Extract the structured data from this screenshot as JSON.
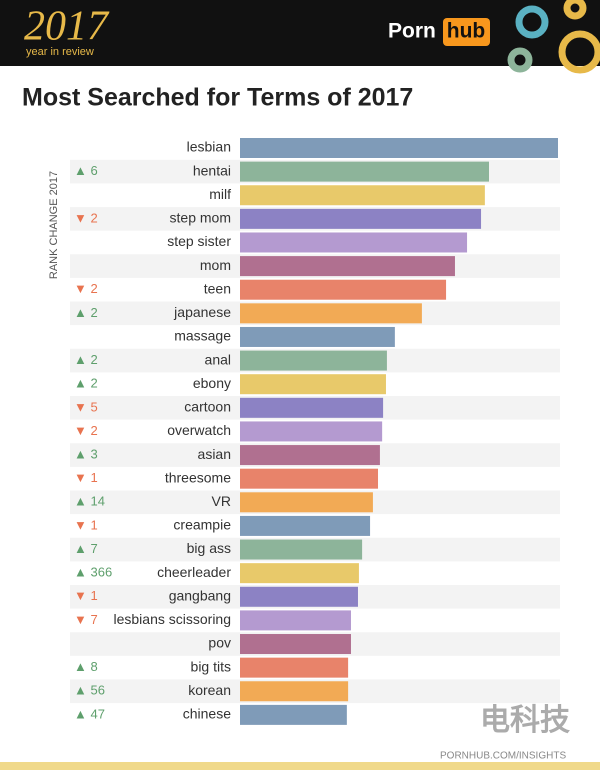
{
  "header": {
    "year": "2017",
    "subtitle": "year in review",
    "brand_left": "Porn",
    "brand_right": "hub"
  },
  "chart_data": {
    "type": "bar",
    "orientation": "horizontal",
    "title": "Most Searched for Terms of 2017",
    "rank_axis_label": "RANK CHANGE 2017",
    "categories": [
      "lesbian",
      "hentai",
      "milf",
      "step mom",
      "step sister",
      "mom",
      "teen",
      "japanese",
      "massage",
      "anal",
      "ebony",
      "cartoon",
      "overwatch",
      "asian",
      "threesome",
      "VR",
      "creampie",
      "big ass",
      "cheerleader",
      "gangbang",
      "lesbians scissoring",
      "pov",
      "big tits",
      "korean",
      "chinese"
    ],
    "values": [
      100,
      78.3,
      77.0,
      75.8,
      71.4,
      67.6,
      64.8,
      57.2,
      48.7,
      46.2,
      45.9,
      45.0,
      44.7,
      44.0,
      43.4,
      41.8,
      40.9,
      38.4,
      37.4,
      37.1,
      34.9,
      34.9,
      34.0,
      34.0,
      33.6
    ],
    "colors": [
      "#7f9bb8",
      "#8db49a",
      "#e8c96a",
      "#8c82c4",
      "#b49ad0",
      "#b07090",
      "#e8836a",
      "#f2aa55"
    ],
    "rank_change": [
      null,
      {
        "label": "▲ 6",
        "color": "#5e9f6c"
      },
      null,
      {
        "label": "▼ 2",
        "color": "#e8734f"
      },
      null,
      null,
      {
        "label": "▼ 2",
        "color": "#e8734f"
      },
      {
        "label": "▲ 2",
        "color": "#5e9f6c"
      },
      null,
      {
        "label": "▲ 2",
        "color": "#5e9f6c"
      },
      {
        "label": "▲ 2",
        "color": "#5e9f6c"
      },
      {
        "label": "▼ 5",
        "color": "#e8734f"
      },
      {
        "label": "▼ 2",
        "color": "#e8734f"
      },
      {
        "label": "▲ 3",
        "color": "#5e9f6c"
      },
      {
        "label": "▼ 1",
        "color": "#e8734f"
      },
      {
        "label": "▲ 14",
        "color": "#5e9f6c"
      },
      {
        "label": "▼ 1",
        "color": "#e8734f"
      },
      {
        "label": "▲ 7",
        "color": "#5e9f6c"
      },
      {
        "label": "▲ 366",
        "color": "#5e9f6c"
      },
      {
        "label": "▼ 1",
        "color": "#e8734f"
      },
      {
        "label": "▼ 7",
        "color": "#e8734f"
      },
      null,
      {
        "label": "▲ 8",
        "color": "#5e9f6c"
      },
      {
        "label": "▲ 56",
        "color": "#5e9f6c"
      },
      {
        "label": "▲ 47",
        "color": "#5e9f6c"
      }
    ],
    "xlim": [
      0,
      100
    ]
  },
  "footer": {
    "source": "PORNHUB.COM/INSIGHTS",
    "watermark": "电科技"
  }
}
